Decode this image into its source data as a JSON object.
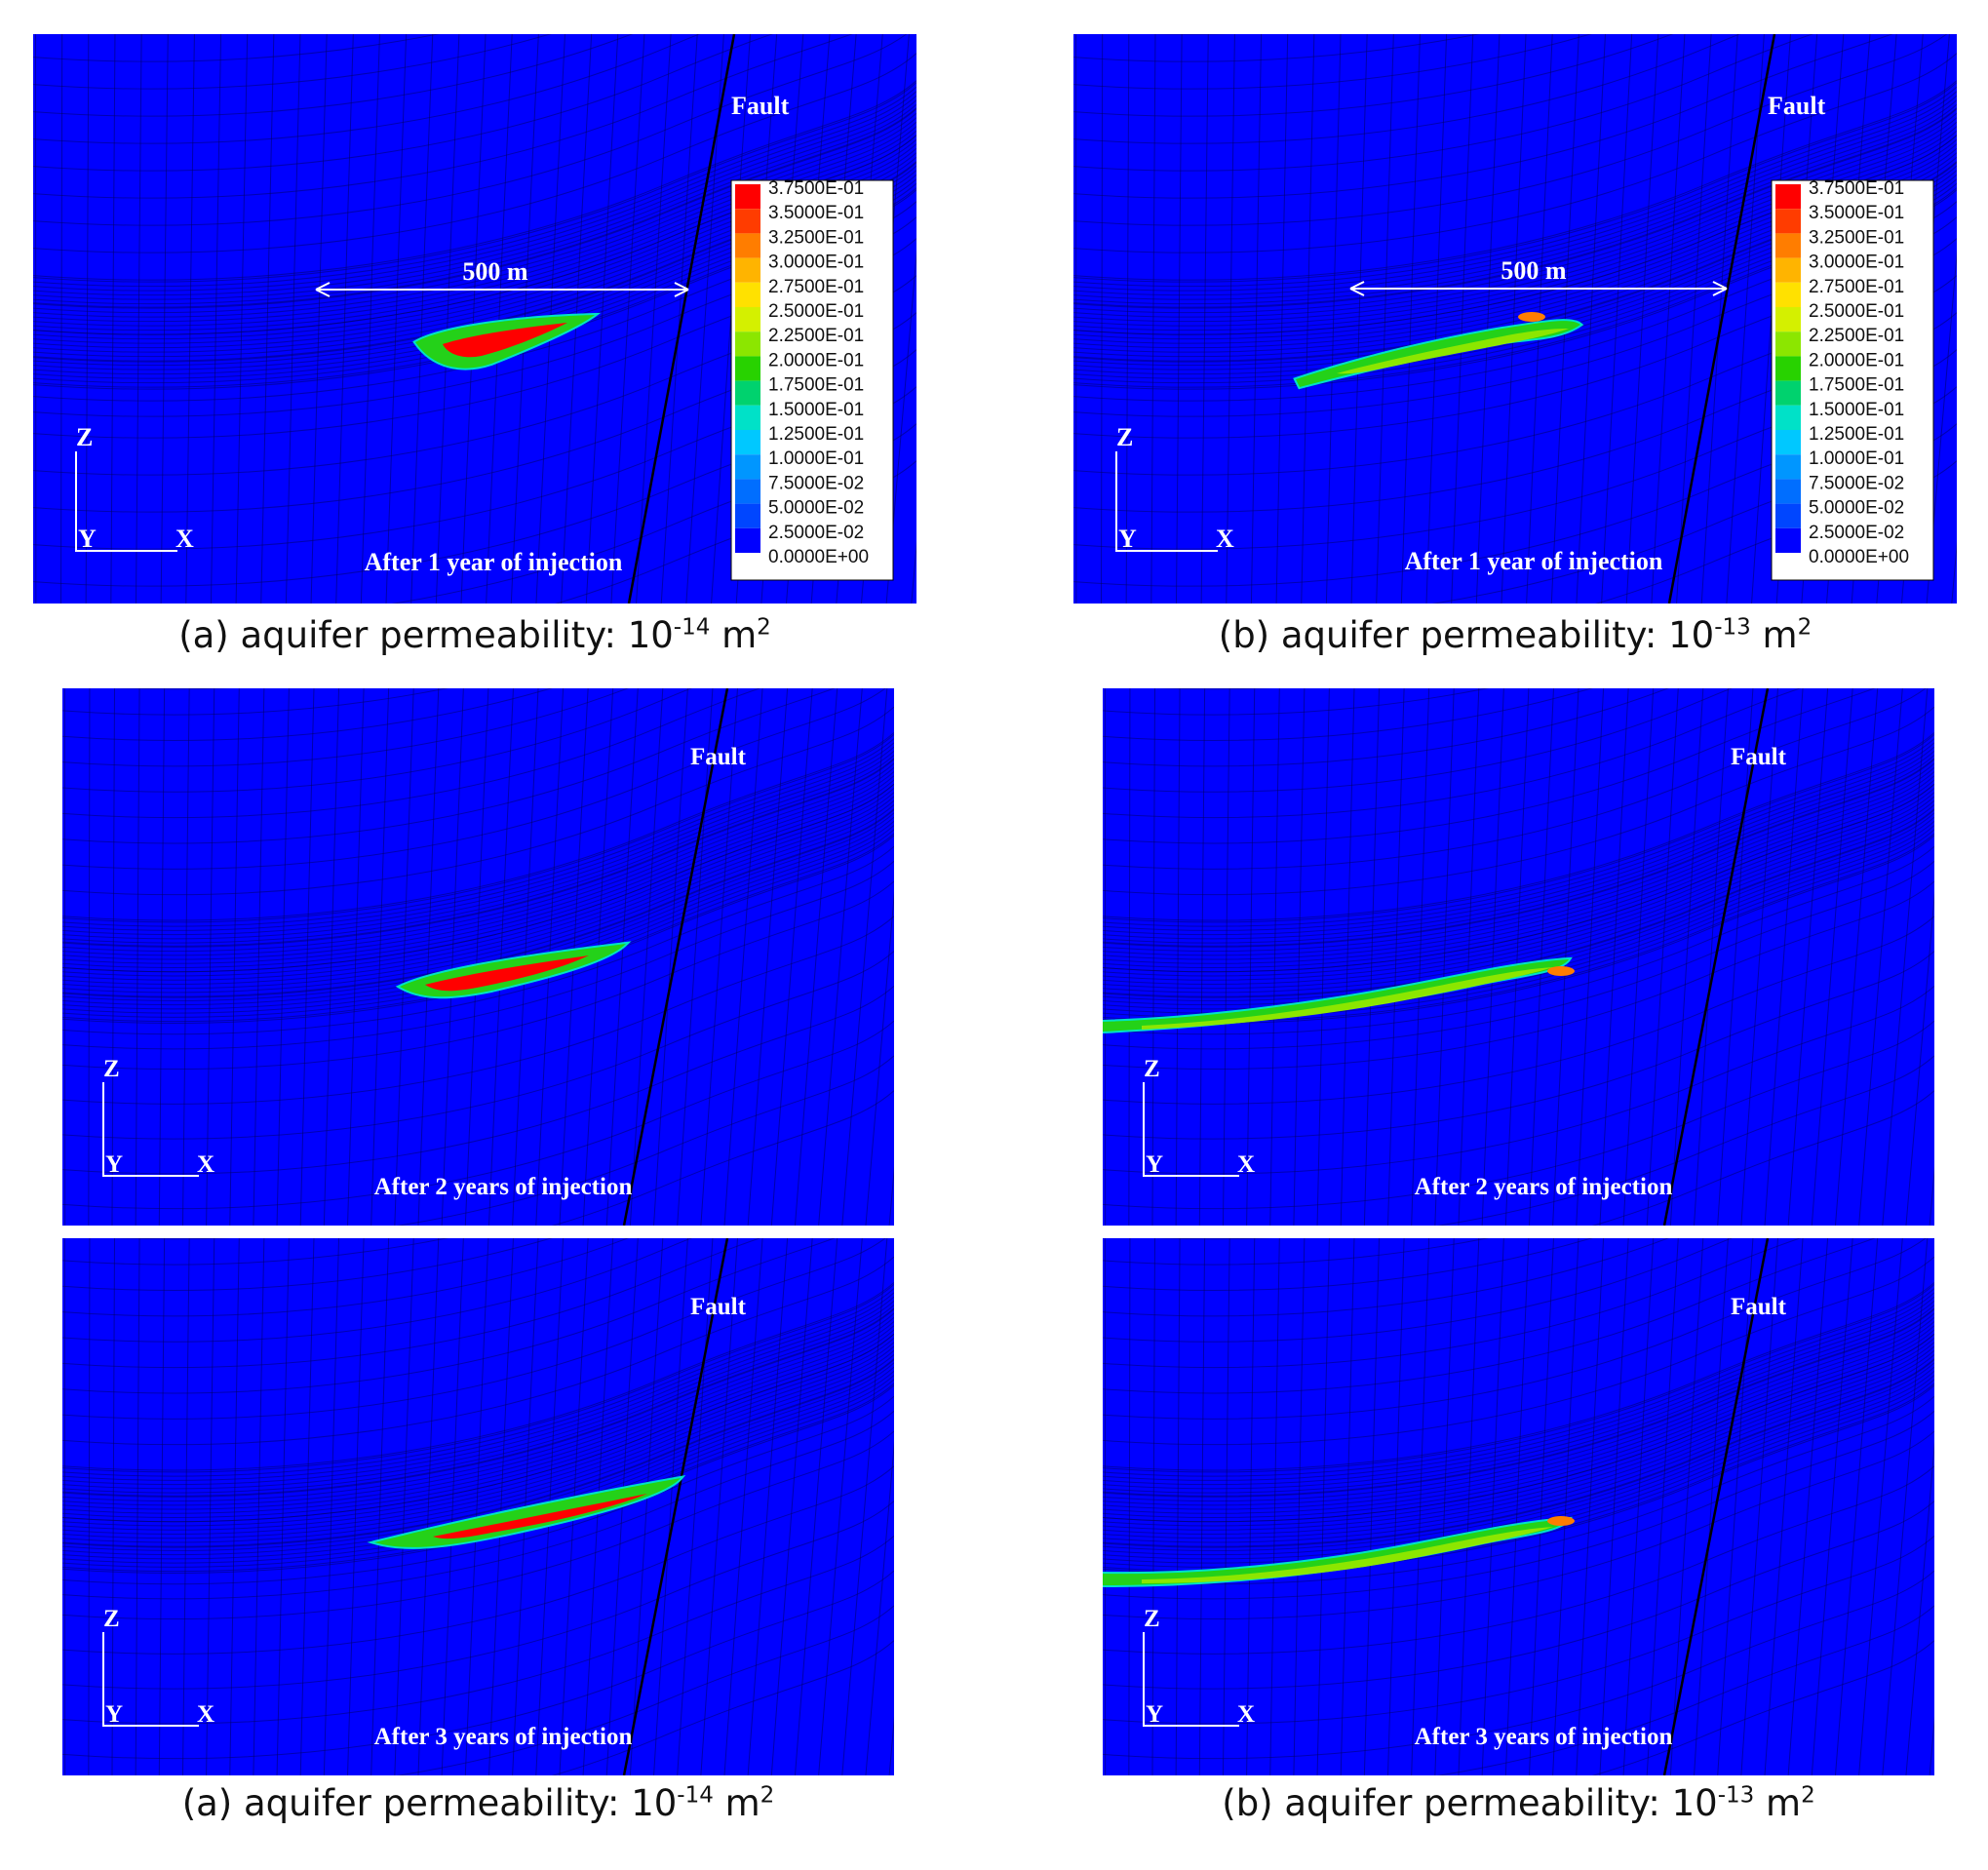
{
  "legend": {
    "colors": [
      "#ff0000",
      "#ff3c00",
      "#ff7d00",
      "#ffb400",
      "#ffe100",
      "#d4f000",
      "#8ce600",
      "#28d200",
      "#00d26e",
      "#00e1c8",
      "#00c8ff",
      "#0096ff",
      "#006eff",
      "#0046ff",
      "#0000ff"
    ],
    "labels": [
      "3.7500E-01",
      "3.5000E-01",
      "3.2500E-01",
      "3.0000E-01",
      "2.7500E-01",
      "2.5000E-01",
      "2.2500E-01",
      "2.0000E-01",
      "1.7500E-01",
      "1.5000E-01",
      "1.2500E-01",
      "1.0000E-01",
      "7.5000E-02",
      "5.0000E-02",
      "2.5000E-02",
      "0.0000E+00"
    ]
  },
  "panels": [
    {
      "id": "a1",
      "fault": "Fault",
      "scale": "500 m",
      "axis": {
        "z": "Z",
        "y": "Y",
        "x": "X"
      },
      "time": "After 1 year of injection",
      "legend": true,
      "plume": "low-perm-1"
    },
    {
      "id": "b1",
      "fault": "Fault",
      "scale": "500 m",
      "axis": {
        "z": "Z",
        "y": "Y",
        "x": "X"
      },
      "time": "After 1 year of injection",
      "legend": true,
      "plume": "high-perm-1"
    },
    {
      "id": "a2",
      "fault": "Fault",
      "axis": {
        "z": "Z",
        "y": "Y",
        "x": "X"
      },
      "time": "After 2 years of injection",
      "legend": false,
      "plume": "low-perm-2"
    },
    {
      "id": "b2",
      "fault": "Fault",
      "axis": {
        "z": "Z",
        "y": "Y",
        "x": "X"
      },
      "time": "After 2 years of injection",
      "legend": false,
      "plume": "high-perm-2"
    },
    {
      "id": "a3",
      "fault": "Fault",
      "axis": {
        "z": "Z",
        "y": "Y",
        "x": "X"
      },
      "time": "After 3 years of injection",
      "legend": false,
      "plume": "low-perm-3"
    },
    {
      "id": "b3",
      "fault": "Fault",
      "axis": {
        "z": "Z",
        "y": "Y",
        "x": "X"
      },
      "time": "After 3 years of injection",
      "legend": false,
      "plume": "high-perm-3"
    }
  ],
  "captions": {
    "a_top": {
      "prefix": "(a) aquifer permeability: 10",
      "exp": "-14",
      "suffix": " m",
      "sq": "2"
    },
    "b_top": {
      "prefix": "(b) aquifer permeability: 10",
      "exp": "-13",
      "suffix": " m",
      "sq": "2"
    },
    "a_bottom": {
      "prefix": "(a) aquifer permeability: 10",
      "exp": "-14",
      "suffix": " m",
      "sq": "2"
    },
    "b_bottom": {
      "prefix": "(b) aquifer permeability: 10",
      "exp": "-13",
      "suffix": " m",
      "sq": "2"
    }
  }
}
